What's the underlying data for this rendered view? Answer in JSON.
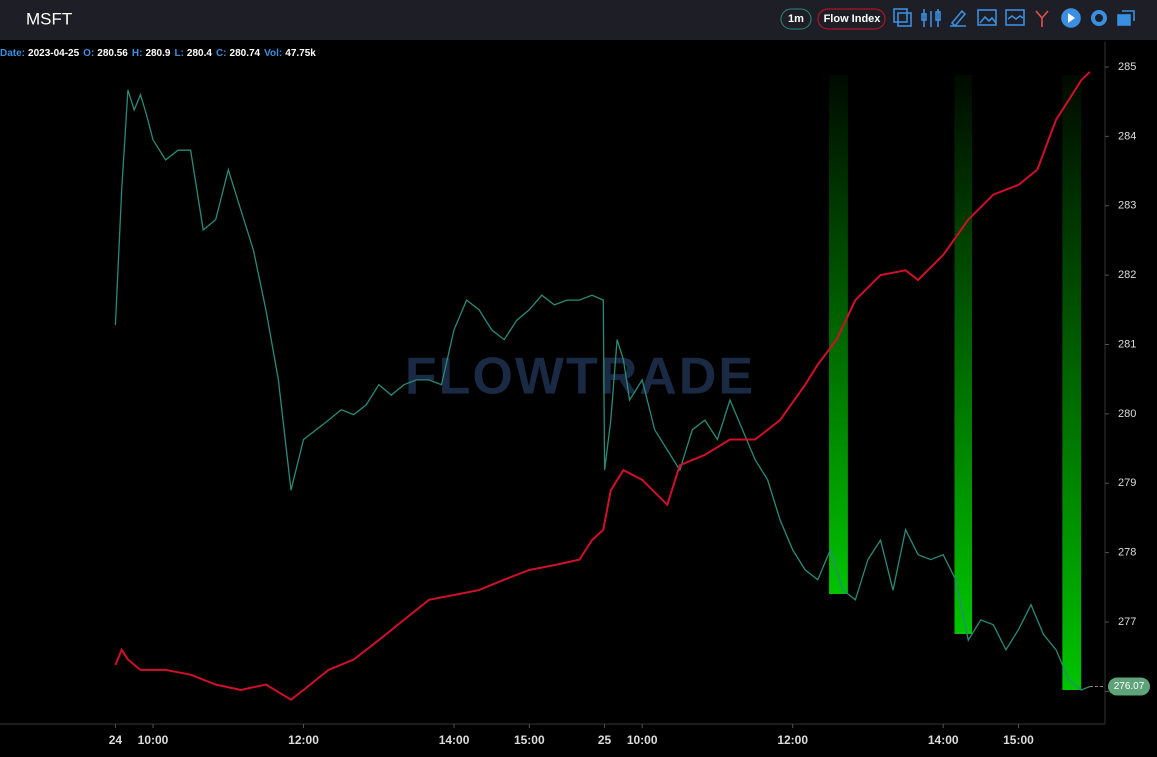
{
  "header": {
    "symbol": "MSFT",
    "interval": "1m"
  },
  "info": {
    "date_label": "Date:",
    "date": "2023-04-25",
    "fields": [
      {
        "label": "O:",
        "value": 280.56
      },
      {
        "label": "H:",
        "value": 280.9
      },
      {
        "label": "L:",
        "value": 280.4
      },
      {
        "label": "C:",
        "value": 280.74
      },
      {
        "label": "Vol:",
        "value": "47.75k"
      }
    ]
  },
  "watermark": "FLOWTRADE",
  "chart_data": {
    "type": "line",
    "series": [
      {
        "name": "MSFT",
        "color": "#2a8a78",
        "x": [
          0,
          5,
          10,
          15,
          20,
          25,
          30,
          40,
          50,
          60,
          70,
          80,
          90,
          100,
          110,
          120,
          130,
          140,
          150,
          160,
          170,
          180,
          190,
          200,
          210,
          220,
          230,
          240,
          250,
          260,
          270,
          280,
          290,
          300,
          310,
          320,
          330,
          340,
          350,
          360,
          370,
          380,
          389,
          390,
          395,
          400,
          405,
          410,
          420,
          430,
          440,
          450,
          460,
          470,
          480,
          490,
          500,
          510,
          520,
          530,
          540,
          550,
          560,
          570,
          580,
          590,
          600,
          610,
          620,
          630,
          640,
          650,
          660,
          670,
          680,
          690,
          700,
          710,
          720,
          730,
          740,
          750,
          760,
          770,
          777
        ],
        "values": [
          281.28,
          283.23,
          284.67,
          284.38,
          284.6,
          284.3,
          283.95,
          283.66,
          283.8,
          283.8,
          282.65,
          282.8,
          283.52,
          282.94,
          282.36,
          281.5,
          280.49,
          278.9,
          279.63,
          279.77,
          279.91,
          280.06,
          279.99,
          280.13,
          280.42,
          280.27,
          280.42,
          280.49,
          280.49,
          280.42,
          281.21,
          281.64,
          281.5,
          281.21,
          281.07,
          281.35,
          281.5,
          281.71,
          281.57,
          281.64,
          281.64,
          281.71,
          281.64,
          279.19,
          279.91,
          281.07,
          280.78,
          280.2,
          280.49,
          279.77,
          279.48,
          279.19,
          279.77,
          279.91,
          279.63,
          280.2,
          279.77,
          279.34,
          279.05,
          278.47,
          278.04,
          277.75,
          277.61,
          278.04,
          277.46,
          277.32,
          277.9,
          278.18,
          277.46,
          278.33,
          277.97,
          277.9,
          277.97,
          277.61,
          276.74,
          277.03,
          276.96,
          276.6,
          276.89,
          277.25,
          276.82,
          276.6,
          276.17,
          276.02,
          276.07
        ]
      },
      {
        "name": "Flow Index",
        "color": "#d0102a",
        "x": [
          0,
          5,
          10,
          20,
          40,
          60,
          80,
          100,
          120,
          140,
          150,
          170,
          190,
          210,
          230,
          250,
          270,
          290,
          310,
          330,
          350,
          370,
          380,
          389,
          395,
          405,
          420,
          440,
          450,
          470,
          490,
          510,
          530,
          550,
          560,
          575,
          590,
          610,
          630,
          640,
          660,
          680,
          700,
          720,
          735,
          750,
          760,
          770,
          777
        ],
        "values": [
          276.38,
          276.6,
          276.46,
          276.31,
          276.31,
          276.24,
          276.1,
          276.02,
          276.1,
          275.88,
          276.02,
          276.31,
          276.46,
          276.74,
          277.03,
          277.32,
          277.39,
          277.46,
          277.61,
          277.75,
          277.82,
          277.9,
          278.18,
          278.33,
          278.9,
          279.19,
          279.05,
          278.69,
          279.26,
          279.41,
          279.63,
          279.63,
          279.91,
          280.42,
          280.71,
          281.07,
          281.64,
          282.0,
          282.07,
          281.93,
          282.29,
          282.8,
          283.16,
          283.3,
          283.52,
          284.24,
          284.52,
          284.81,
          284.93
        ]
      }
    ],
    "highlights": [
      [
        569,
        584
      ],
      [
        669,
        683
      ],
      [
        755,
        770
      ]
    ],
    "highlight_color": "#00c400",
    "xlim": [
      -92,
      789
    ],
    "xticks": [
      {
        "value": 0,
        "label": "24"
      },
      {
        "value": 30,
        "label": "10:00"
      },
      {
        "value": 150,
        "label": "12:00"
      },
      {
        "value": 270,
        "label": "14:00"
      },
      {
        "value": 330,
        "label": "15:00"
      },
      {
        "value": 390,
        "label": "25"
      },
      {
        "value": 420,
        "label": "10:00"
      },
      {
        "value": 540,
        "label": "12:00"
      },
      {
        "value": 660,
        "label": "14:00"
      },
      {
        "value": 720,
        "label": "15:00"
      }
    ],
    "ylim": [
      275.53,
      285.36
    ],
    "yticks": [
      276,
      277,
      278,
      279,
      280,
      281,
      282,
      283,
      284,
      285
    ]
  }
}
